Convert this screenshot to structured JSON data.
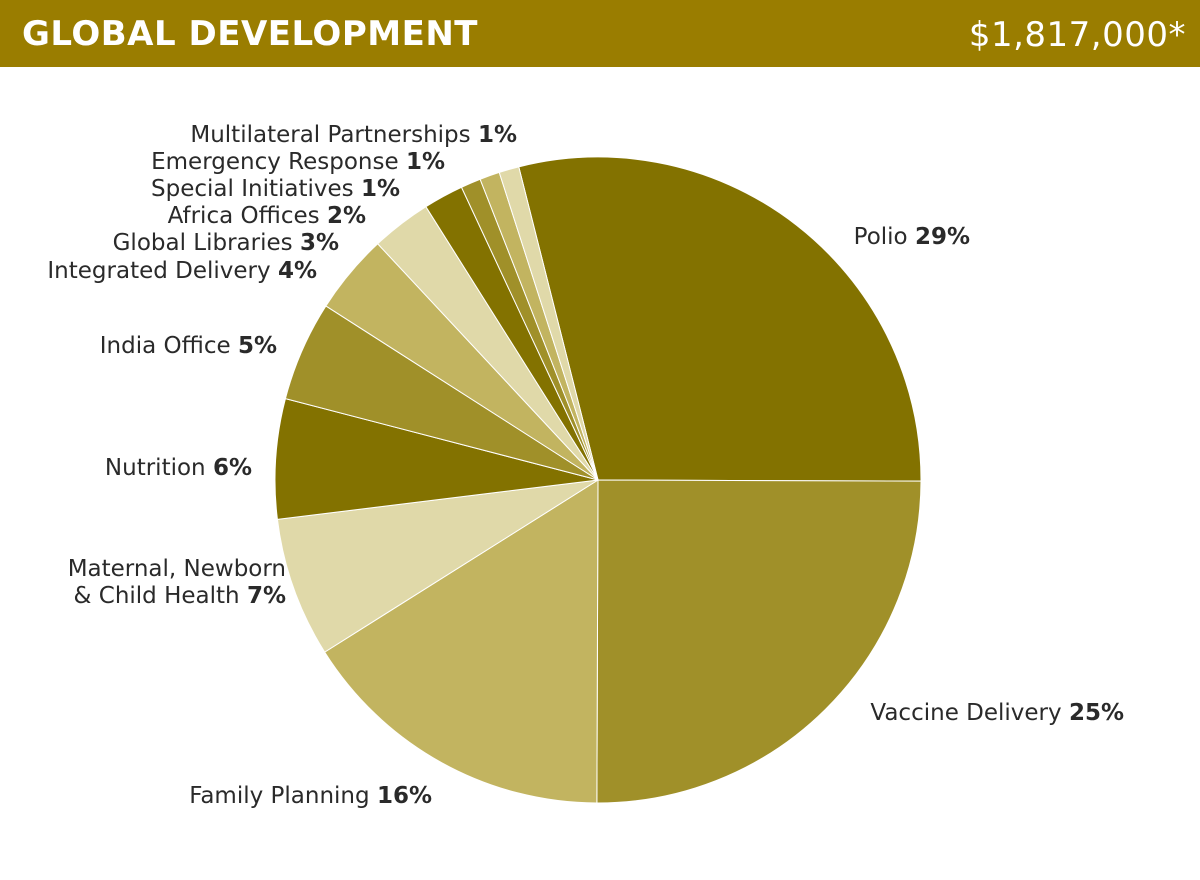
{
  "header": {
    "title": "GLOBAL DEVELOPMENT",
    "total": "$1,817,000*"
  },
  "chart_data": {
    "type": "pie",
    "title": "GLOBAL DEVELOPMENT",
    "total_label": "$1,817,000*",
    "unit": "%",
    "slices": [
      {
        "name": "Polio",
        "value": 29,
        "label": "Polio",
        "pct_label": "29%",
        "color": "#837200"
      },
      {
        "name": "Vaccine Delivery",
        "value": 25,
        "label": "Vaccine Delivery",
        "pct_label": "25%",
        "color": "#a09029"
      },
      {
        "name": "Family Planning",
        "value": 16,
        "label": "Family Planning",
        "pct_label": "16%",
        "color": "#c2b460"
      },
      {
        "name": "Maternal, Newborn & Child Health",
        "value": 7,
        "label_lines": [
          "Maternal, Newborn",
          "& Child Health"
        ],
        "pct_label": "7%",
        "color": "#e0d9a9"
      },
      {
        "name": "Nutrition",
        "value": 6,
        "label": "Nutrition",
        "pct_label": "6%",
        "color": "#837200"
      },
      {
        "name": "India Office",
        "value": 5,
        "label": "India Office",
        "pct_label": "5%",
        "color": "#a09029"
      },
      {
        "name": "Integrated Delivery",
        "value": 4,
        "label": "Integrated Delivery",
        "pct_label": "4%",
        "color": "#c2b460"
      },
      {
        "name": "Global Libraries",
        "value": 3,
        "label": "Global Libraries",
        "pct_label": "3%",
        "color": "#e0d9a9"
      },
      {
        "name": "Africa Offices",
        "value": 2,
        "label": "Africa Offices",
        "pct_label": "2%",
        "color": "#837200"
      },
      {
        "name": "Special Initiatives",
        "value": 1,
        "label": "Special Initiatives",
        "pct_label": "1%",
        "color": "#a09029"
      },
      {
        "name": "Emergency Response",
        "value": 1,
        "label": "Emergency Response",
        "pct_label": "1%",
        "color": "#c2b460"
      },
      {
        "name": "Multilateral Partnerships",
        "value": 1,
        "label": "Multilateral Partnerships",
        "pct_label": "1%",
        "color": "#e0d9a9"
      }
    ]
  }
}
